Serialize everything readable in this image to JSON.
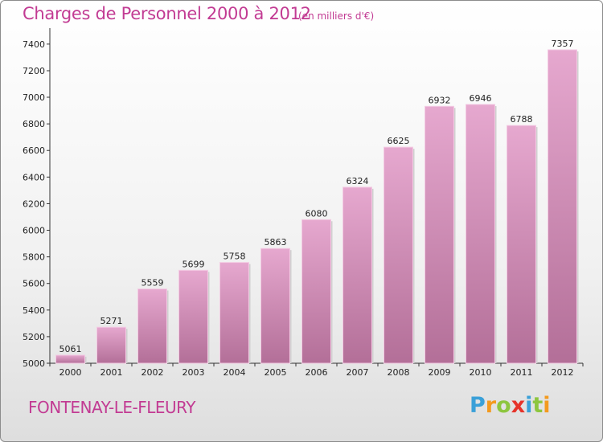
{
  "chart_data": {
    "type": "bar",
    "title": "Charges de Personnel 2000 à 2012",
    "subtitle": "(en milliers d'€)",
    "categories": [
      "2000",
      "2001",
      "2002",
      "2003",
      "2004",
      "2005",
      "2006",
      "2007",
      "2008",
      "2009",
      "2010",
      "2011",
      "2012"
    ],
    "values": [
      5061,
      5271,
      5559,
      5699,
      5758,
      5863,
      6080,
      6324,
      6625,
      6932,
      6946,
      6788,
      7357
    ],
    "ylim": [
      5000,
      7500
    ],
    "yticks": [
      5000,
      5200,
      5400,
      5600,
      5800,
      6000,
      6200,
      6400,
      6600,
      6800,
      7000,
      7200,
      7400
    ],
    "grid": false,
    "bar_color_top": "#e6a8cf",
    "bar_color_bottom": "#b36f98"
  },
  "footer": {
    "town": "FONTENAY-LE-FLEURY",
    "logo_letters": [
      {
        "ch": "P",
        "color": "#3aa0d8"
      },
      {
        "ch": "r",
        "color": "#f39a1e"
      },
      {
        "ch": "o",
        "color": "#8dc63f"
      },
      {
        "ch": "x",
        "color": "#e6332a"
      },
      {
        "ch": "i",
        "color": "#3aa0d8"
      },
      {
        "ch": "t",
        "color": "#8dc63f"
      },
      {
        "ch": "i",
        "color": "#f39a1e"
      }
    ]
  },
  "colors": {
    "accent": "#c23b93"
  }
}
